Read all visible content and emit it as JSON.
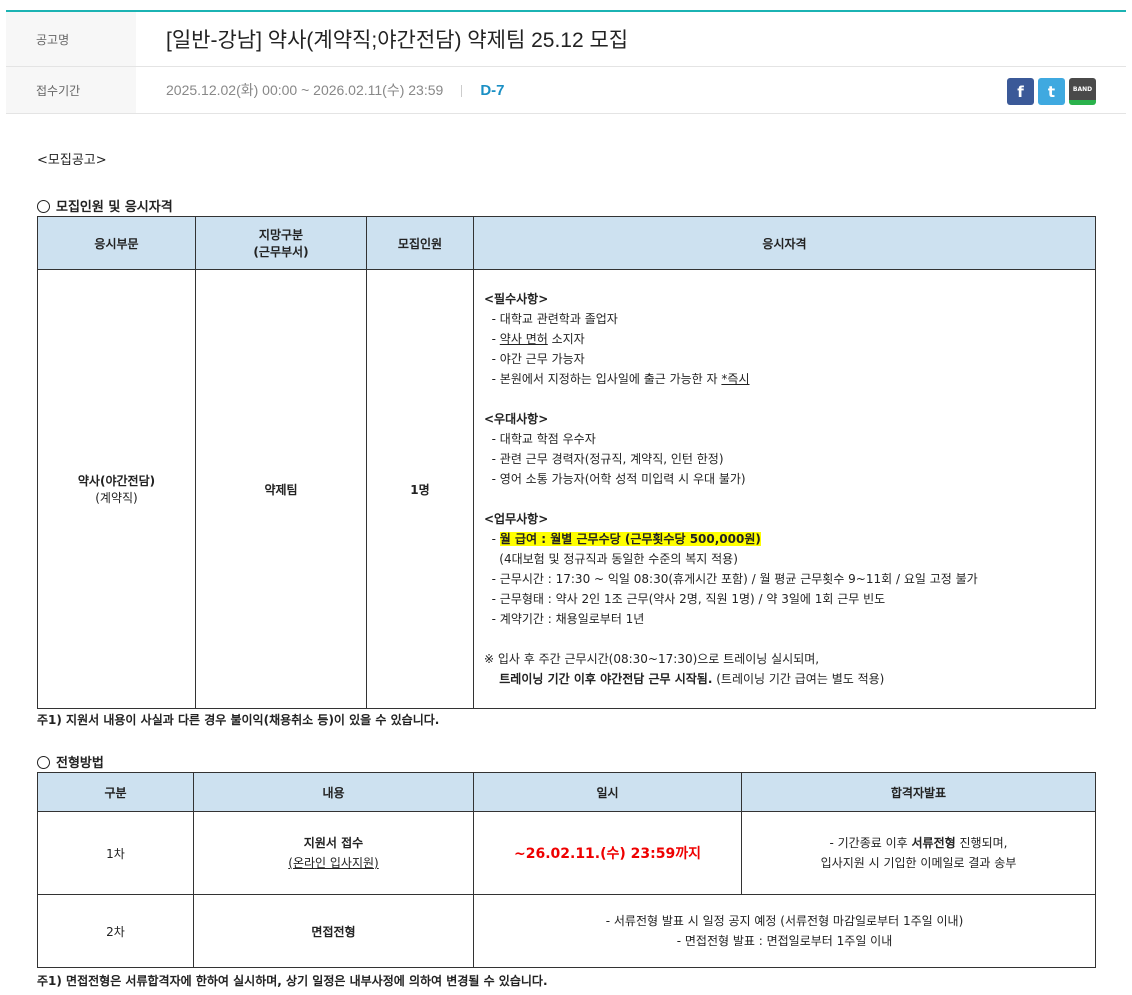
{
  "header": {
    "title_label": "공고명",
    "title": "[일반-강남] 약사(계약직;야간전담) 약제팀 25.12 모집",
    "period_label": "접수기간",
    "period": "2025.12.02(화) 00:00 ~ 2026.02.11(수) 23:59",
    "dday": "D-7",
    "share": [
      {
        "icon": "facebook-icon",
        "glyph": "f",
        "color": "#3b5998"
      },
      {
        "icon": "twitter-icon",
        "glyph": "t",
        "color": "#3fa9e0"
      },
      {
        "icon": "band-icon",
        "glyph": "BAND",
        "color": "#4a4a4a"
      }
    ]
  },
  "notice_heading": "<모집공고>",
  "section1": {
    "title": "모집인원 및 응시자격",
    "headers": [
      "응시부문",
      "지망구분\n(근무부서)",
      "모집인원",
      "응시자격"
    ],
    "field": "약사(야간전담)",
    "field_sub": "(계약직)",
    "dept": "약제팀",
    "count": "1명",
    "required_title": "<필수사항>",
    "required": [
      "- 대학교 관련학과 졸업자",
      "- ",
      "약사 면허",
      " 소지자",
      "- 야간 근무 가능자",
      "- 본원에서 지정하는 입사일에 출근 가능한 자  ",
      "*즉시"
    ],
    "preferred_title": "<우대사항>",
    "preferred": [
      "- 대학교 학점 우수자",
      "- 관련 근무 경력자(정규직, 계약직, 인턴 한정)",
      "- 영어 소통 가능자(어학 성적 미입력 시 우대 불가)"
    ],
    "duty_title": "<업무사항>",
    "duty": [
      "월 급여 : 월별 근무수당 (근무횟수당 500,000원)",
      "(4대보험 및 정규직과 동일한 수준의 복지 적용)",
      "- 근무시간 : 17:30 ~ 익일 08:30(휴게시간 포함) / 월 평균 근무횟수 9~11회 / 요일 고정 불가",
      "- 근무형태 : 약사 2인 1조 근무(약사 2명, 직원 1명) / 약 3일에 1회 근무 빈도",
      "- 계약기간 : 채용일로부터 1년"
    ],
    "training": [
      "※ 입사 후 주간 근무시간(08:30~17:30)으로 트레이닝 실시되며,",
      "트레이닝 기간 이후 야간전담 근무 시작됨.",
      " (트레이닝 기간 급여는 별도 적용)"
    ],
    "note": "주1) 지원서 내용이 사실과 다른 경우 불이익(채용취소 등)이 있을 수 있습니다."
  },
  "section2": {
    "title": "전형방법",
    "headers": [
      "구분",
      "내용",
      "일시",
      "합격자발표"
    ],
    "rows": [
      {
        "step": "1차",
        "content": "지원서 접수",
        "content_sub": "(온라인 입사지원)",
        "date": "~26.02.11.(수) 23:59까지",
        "result1a": "- 기간종료 이후 ",
        "result1b": "서류전형",
        "result1c": " 진행되며,",
        "result2": "입사지원 시 기입한 이메일로 결과 송부"
      },
      {
        "step": "2차",
        "content": "면접전형",
        "info1": "- 서류전형 발표 시 일정 공지 예정 (서류전형 마감일로부터 1주일 이내)",
        "info2": "- 면접전형 발표 : 면접일로부터 1주일 이내"
      }
    ],
    "note": "주1) 면접전형은 서류합격자에 한하여 실시하며, 상기 일정은 내부사정에 의하여 변경될 수 있습니다."
  }
}
